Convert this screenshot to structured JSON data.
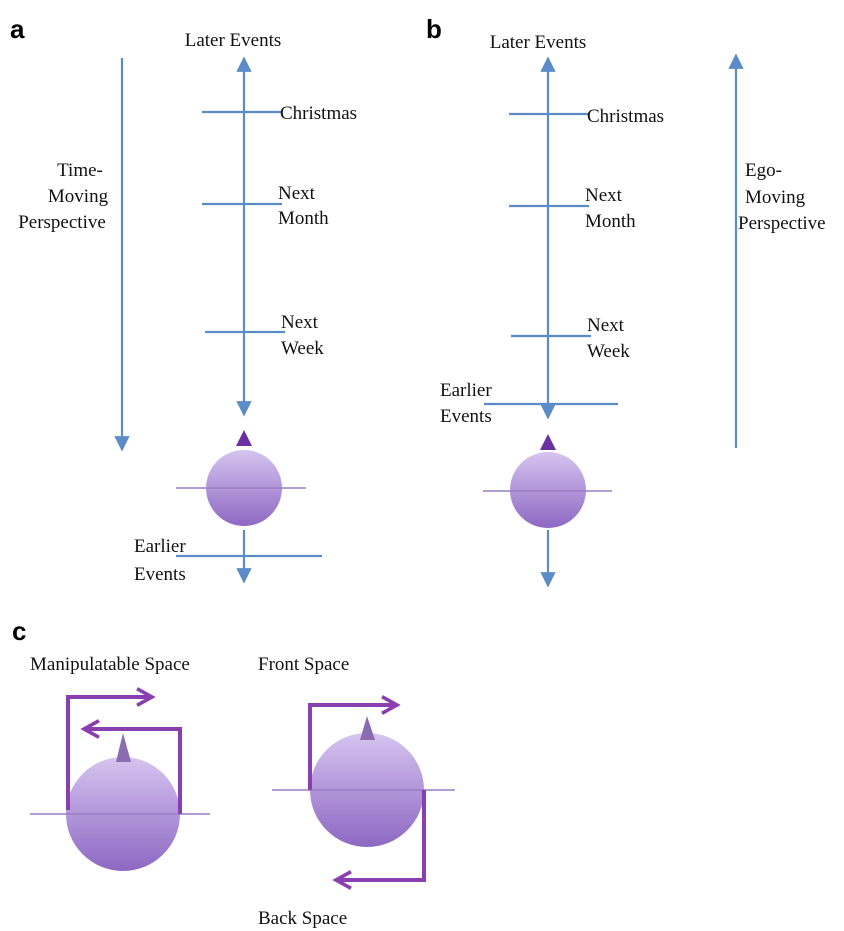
{
  "panel_a": {
    "label": "a",
    "later": "Later Events",
    "christmas": [
      "Christmas"
    ],
    "next_month": [
      "Next",
      "Month"
    ],
    "next_week": [
      "Next",
      "Week"
    ],
    "earlier": [
      "Earlier",
      "Events"
    ],
    "perspective": [
      "Time-",
      "Moving",
      "Perspective"
    ]
  },
  "panel_b": {
    "label": "b",
    "later": "Later Events",
    "christmas": [
      "Christmas"
    ],
    "next_month": [
      "Next",
      "Month"
    ],
    "next_week": [
      "Next",
      "Week"
    ],
    "earlier": [
      "Earlier",
      "Events"
    ],
    "perspective": [
      "Ego-",
      "Moving",
      "Perspective"
    ]
  },
  "panel_c": {
    "label": "c",
    "manipulatable": "Manipulatable Space",
    "front": "Front Space",
    "back": "Back Space"
  }
}
